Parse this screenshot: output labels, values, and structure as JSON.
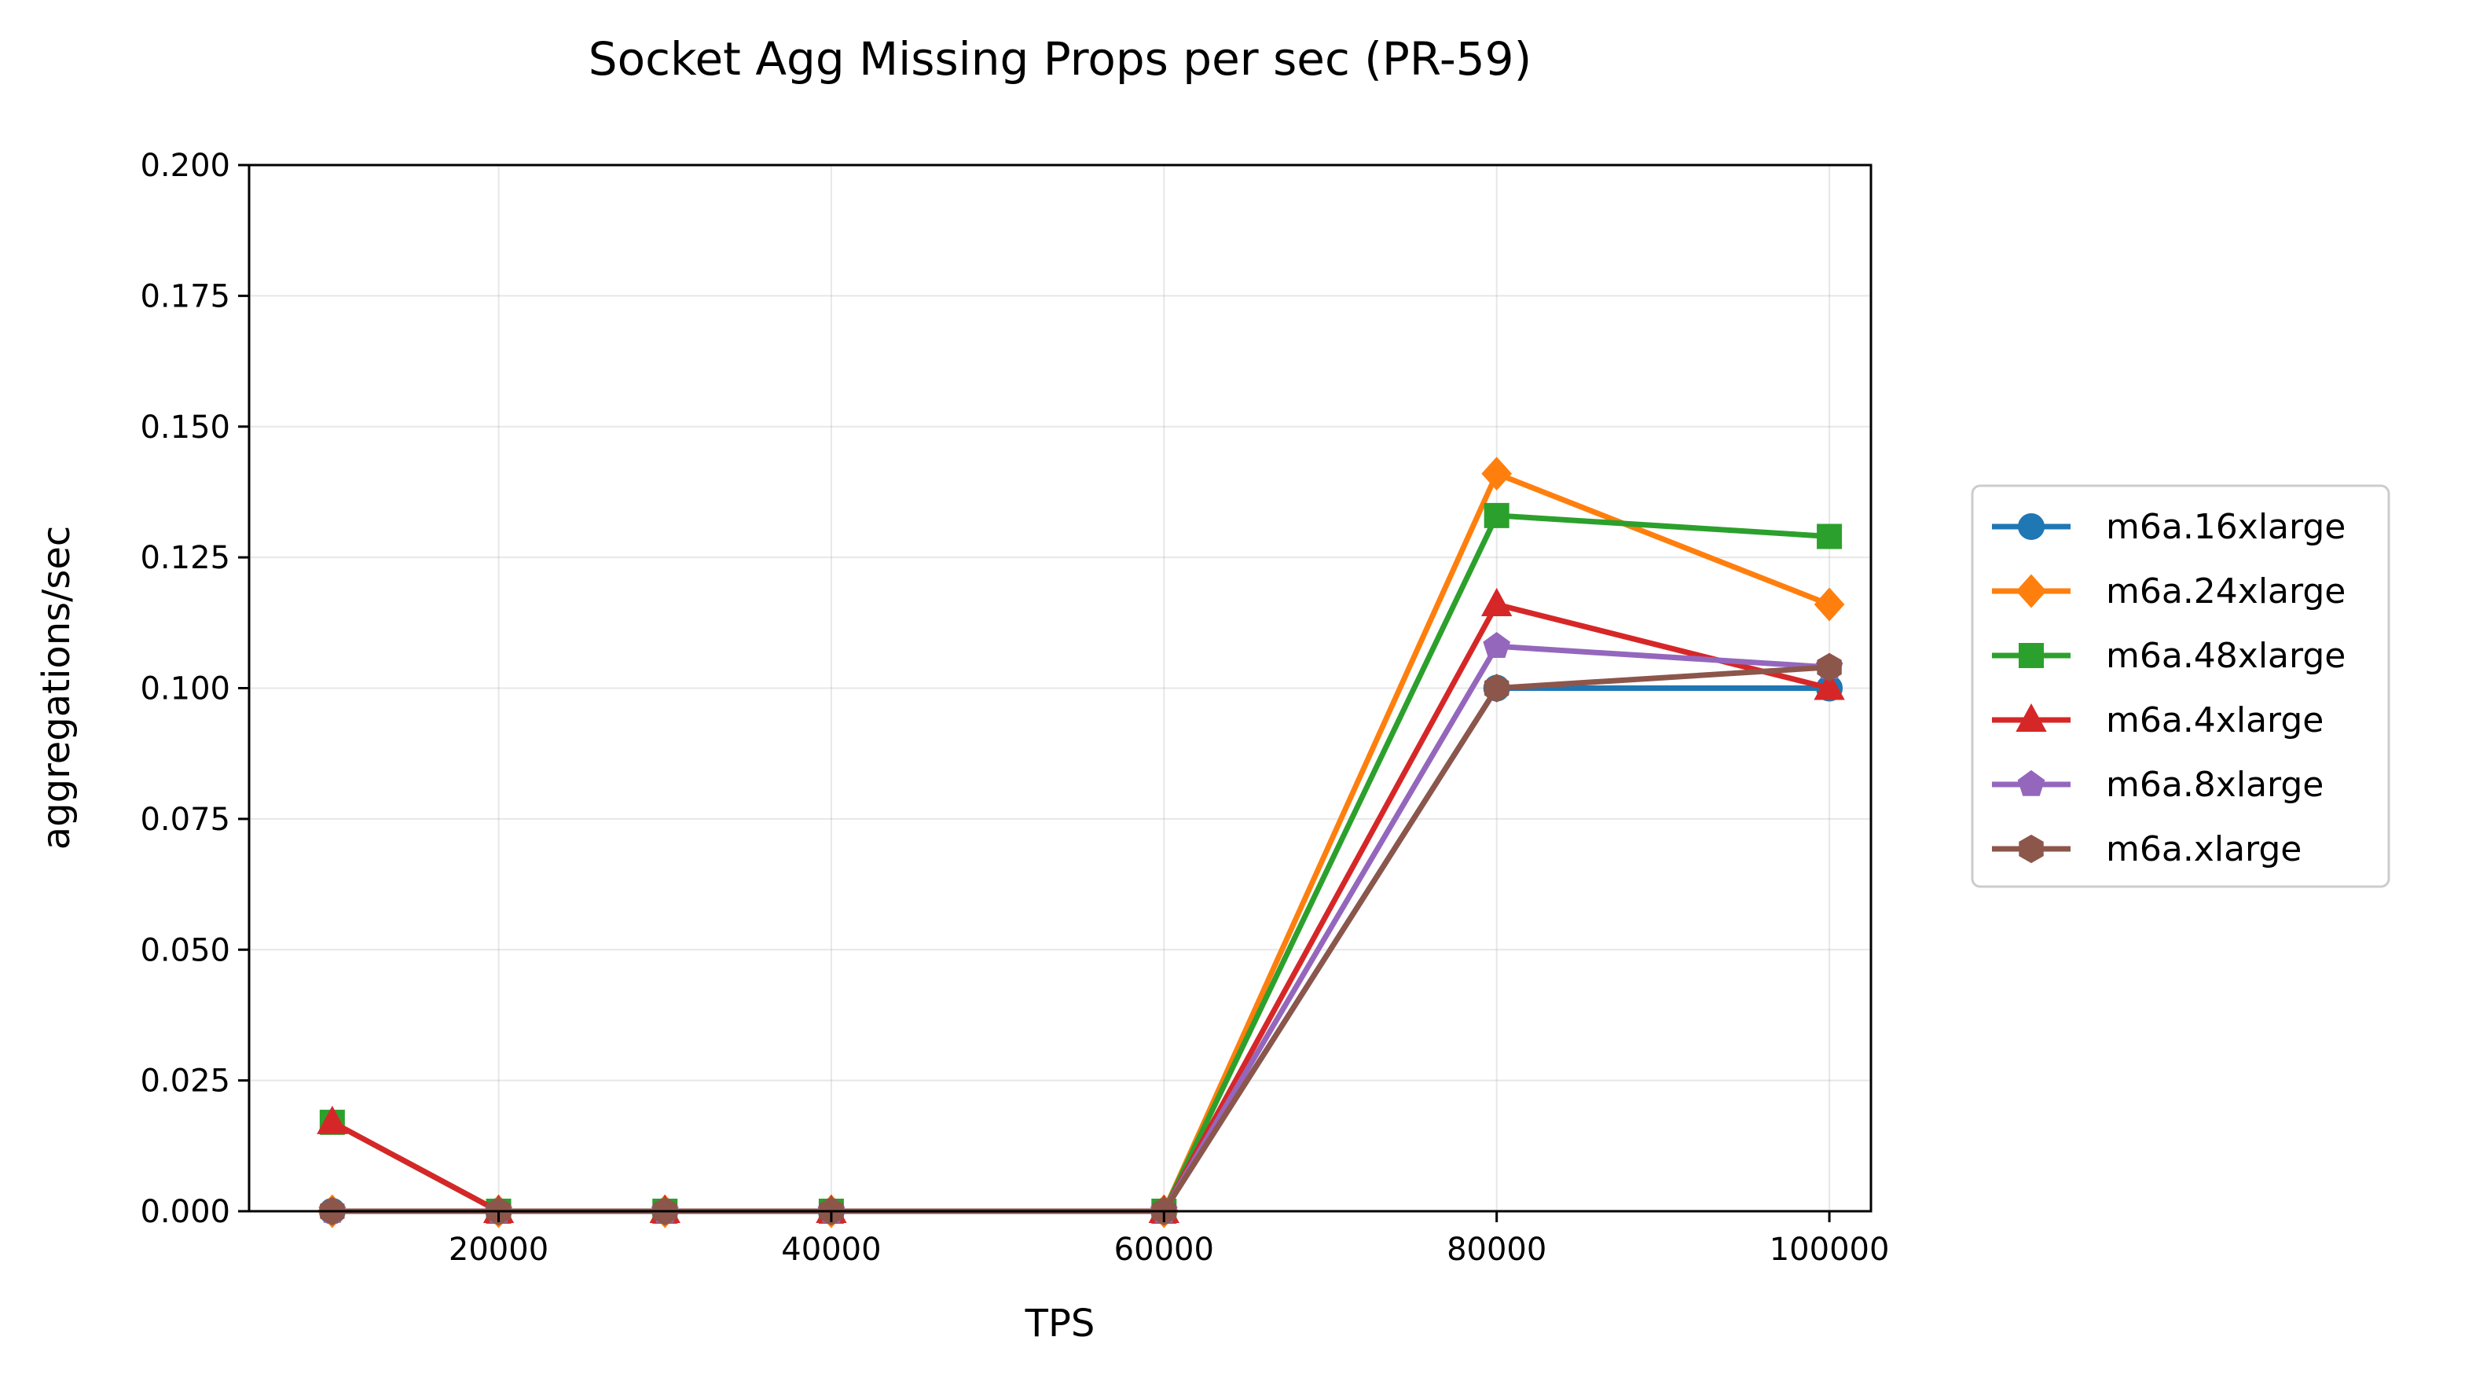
{
  "chart_data": {
    "type": "line",
    "title": "Socket Agg Missing Props per sec (PR-59)",
    "xlabel": "TPS",
    "ylabel": "aggregations/sec",
    "x": [
      10000,
      20000,
      30000,
      40000,
      60000,
      80000,
      100000
    ],
    "xlim": [
      5000,
      102500
    ],
    "ylim": [
      0,
      0.2
    ],
    "xticks": [
      20000,
      40000,
      60000,
      80000,
      100000
    ],
    "xtick_labels": [
      "20000",
      "40000",
      "60000",
      "80000",
      "100000"
    ],
    "yticks": [
      0,
      0.025,
      0.05,
      0.075,
      0.1,
      0.125,
      0.15,
      0.175,
      0.2
    ],
    "ytick_labels": [
      "0.000",
      "0.025",
      "0.050",
      "0.075",
      "0.100",
      "0.125",
      "0.150",
      "0.175",
      "0.200"
    ],
    "grid": true,
    "legend_position": "outside right",
    "series": [
      {
        "name": "m6a.16xlarge",
        "color": "#1f77b4",
        "marker": "circle",
        "values": [
          0,
          0,
          0,
          0,
          0,
          0.1,
          0.1
        ]
      },
      {
        "name": "m6a.24xlarge",
        "color": "#ff7f0e",
        "marker": "diamond",
        "values": [
          0,
          0,
          0,
          0,
          0,
          0.141,
          0.116
        ]
      },
      {
        "name": "m6a.48xlarge",
        "color": "#2ca02c",
        "marker": "square",
        "values": [
          0.017,
          0,
          0,
          0,
          0,
          0.133,
          0.129
        ]
      },
      {
        "name": "m6a.4xlarge",
        "color": "#d62728",
        "marker": "triangle",
        "values": [
          0.017,
          0,
          0,
          0,
          0,
          0.116,
          0.1
        ]
      },
      {
        "name": "m6a.8xlarge",
        "color": "#9467bd",
        "marker": "pentagon",
        "values": [
          0,
          0,
          0,
          0,
          0,
          0.108,
          0.104
        ]
      },
      {
        "name": "m6a.xlarge",
        "color": "#8c564b",
        "marker": "hexagon",
        "values": [
          0,
          0,
          0,
          0,
          0,
          0.1,
          0.104
        ]
      }
    ]
  }
}
